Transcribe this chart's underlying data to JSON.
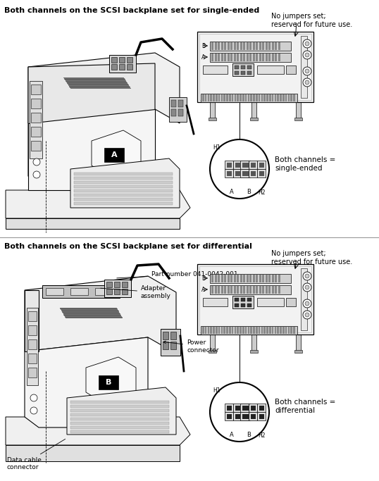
{
  "bg_color": "#ffffff",
  "top_heading": "Both channels on the SCSI backplane set for single-ended",
  "top_note": "No jumpers set;\nreserved for future use.",
  "top_label": "Both channels =\nsingle-ended",
  "bot_heading": "Both channels on the SCSI backplane set for differential",
  "bot_note": "No jumpers set;\nreserved for future use.",
  "bot_label": "Both channels =\ndifferential",
  "bot_labels": [
    [
      "Part number 041-0042-001",
      163,
      368,
      215,
      363
    ],
    [
      "Adapter\nassembly",
      155,
      382,
      205,
      388
    ],
    [
      "Power\nconnector",
      232,
      468,
      262,
      468
    ],
    [
      "Data cable\nconnector",
      25,
      628,
      60,
      648
    ]
  ],
  "fig_width": 5.38,
  "fig_height": 6.83,
  "dpi": 100
}
